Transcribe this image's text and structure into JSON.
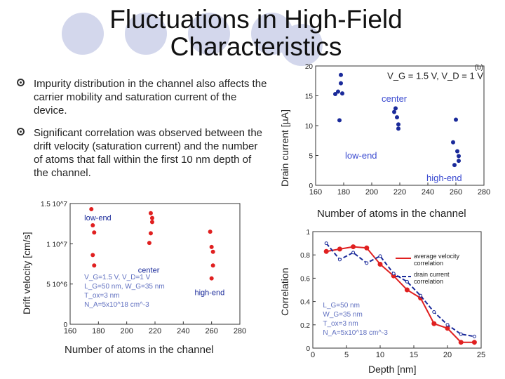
{
  "slide": {
    "title": "Fluctuations in High-Field Characteristics",
    "bullets": [
      "Impurity distribution in the channel also affects the carrier mobility and saturation current of the device.",
      "Significant correlation was observed between the drift velocity (saturation current) and the number of atoms that fall within the first 10 nm depth of the channel."
    ],
    "colors": {
      "decor": "#d3d7ec",
      "red": "#e02020",
      "blue": "#1a2a9a"
    }
  },
  "chart_data": [
    {
      "type": "scatter",
      "panel_label": "(b)",
      "condition": "V_G = 1.5 V, V_D = 1 V",
      "ylabel": "Drain current [µA]",
      "xlabel": "Number of atoms in the channel",
      "xlim": [
        160,
        280
      ],
      "ylim": [
        0,
        20
      ],
      "x_ticks": [
        "160",
        "180",
        "200",
        "220",
        "240",
        "260",
        "280"
      ],
      "y_ticks": [
        "0",
        "5",
        "10",
        "15",
        "20"
      ],
      "grid": false,
      "groups": [
        {
          "label": "low-end",
          "points": [
            [
              174,
              15.3
            ],
            [
              176,
              15.7
            ],
            [
              178,
              18.5
            ],
            [
              178,
              17.1
            ],
            [
              179,
              15.4
            ],
            [
              177,
              10.9
            ]
          ]
        },
        {
          "label": "center",
          "points": [
            [
              216,
              12.3
            ],
            [
              217,
              12.9
            ],
            [
              219,
              10.2
            ],
            [
              219,
              9.5
            ],
            [
              218,
              11.4
            ]
          ]
        },
        {
          "label": "high-end",
          "points": [
            [
              260,
              11.0
            ],
            [
              258,
              7.2
            ],
            [
              261,
              5.7
            ],
            [
              262,
              4.9
            ],
            [
              262,
              4.1
            ],
            [
              259,
              3.4
            ]
          ]
        }
      ],
      "color": "#1a2a9a"
    },
    {
      "type": "scatter",
      "ylabel": "Drift velocity [cm/s]",
      "xlabel": "Number of atoms in the channel",
      "xlim": [
        160,
        280
      ],
      "ylim": [
        0,
        15000000
      ],
      "x_ticks": [
        "160",
        "180",
        "200",
        "220",
        "240",
        "260",
        "280"
      ],
      "y_ticks": [
        "0",
        "5 10^6",
        "1 10^7",
        "1.5 10^7"
      ],
      "grid": false,
      "annotation": [
        "V_G=1.5 V, V_D=1 V",
        "L_G=50 nm, W_G=35 nm",
        "T_ox=3 nm",
        "N_A=5x10^18 cm^-3"
      ],
      "groups": [
        {
          "label": "low-end",
          "points": [
            [
              175,
              14300000
            ],
            [
              176,
              12300000
            ],
            [
              177,
              11400000
            ],
            [
              176,
              8600000
            ],
            [
              177,
              7300000
            ]
          ]
        },
        {
          "label": "center",
          "points": [
            [
              217,
              13800000
            ],
            [
              218,
              13200000
            ],
            [
              218,
              12700000
            ],
            [
              217,
              11300000
            ],
            [
              216,
              10100000
            ]
          ]
        },
        {
          "label": "high-end",
          "points": [
            [
              259,
              11500000
            ],
            [
              260,
              9600000
            ],
            [
              261,
              9000000
            ],
            [
              261,
              7300000
            ],
            [
              260,
              5700000
            ]
          ]
        }
      ],
      "color": "#e02020"
    },
    {
      "type": "line",
      "ylabel": "Correlation",
      "xlabel": "Depth [nm]",
      "xlim": [
        0,
        25
      ],
      "ylim": [
        0,
        1
      ],
      "x_ticks": [
        "0",
        "5",
        "10",
        "15",
        "20",
        "25"
      ],
      "y_ticks": [
        "0",
        "0.2",
        "0.4",
        "0.6",
        "0.8",
        "1"
      ],
      "grid": false,
      "legend_position": "top-right",
      "annotation": [
        "L_G=50 nm",
        "W_G=35 nm",
        "T_ox=3 nm",
        "N_A=5x10^18 cm^-3"
      ],
      "series": [
        {
          "name": "average velocity correlation",
          "color": "#e02020",
          "x": [
            2,
            4,
            6,
            8,
            10,
            12,
            14,
            16,
            18,
            20,
            22,
            24
          ],
          "y": [
            0.83,
            0.85,
            0.87,
            0.86,
            0.72,
            0.62,
            0.5,
            0.43,
            0.21,
            0.17,
            0.05,
            0.05
          ]
        },
        {
          "name": "drain current correlation",
          "color": "#1a2a9a",
          "x": [
            2,
            4,
            6,
            8,
            10,
            12,
            14,
            16,
            18,
            20,
            22,
            24
          ],
          "y": [
            0.9,
            0.76,
            0.82,
            0.73,
            0.79,
            0.64,
            0.57,
            0.45,
            0.31,
            0.2,
            0.12,
            0.1
          ]
        }
      ]
    }
  ]
}
